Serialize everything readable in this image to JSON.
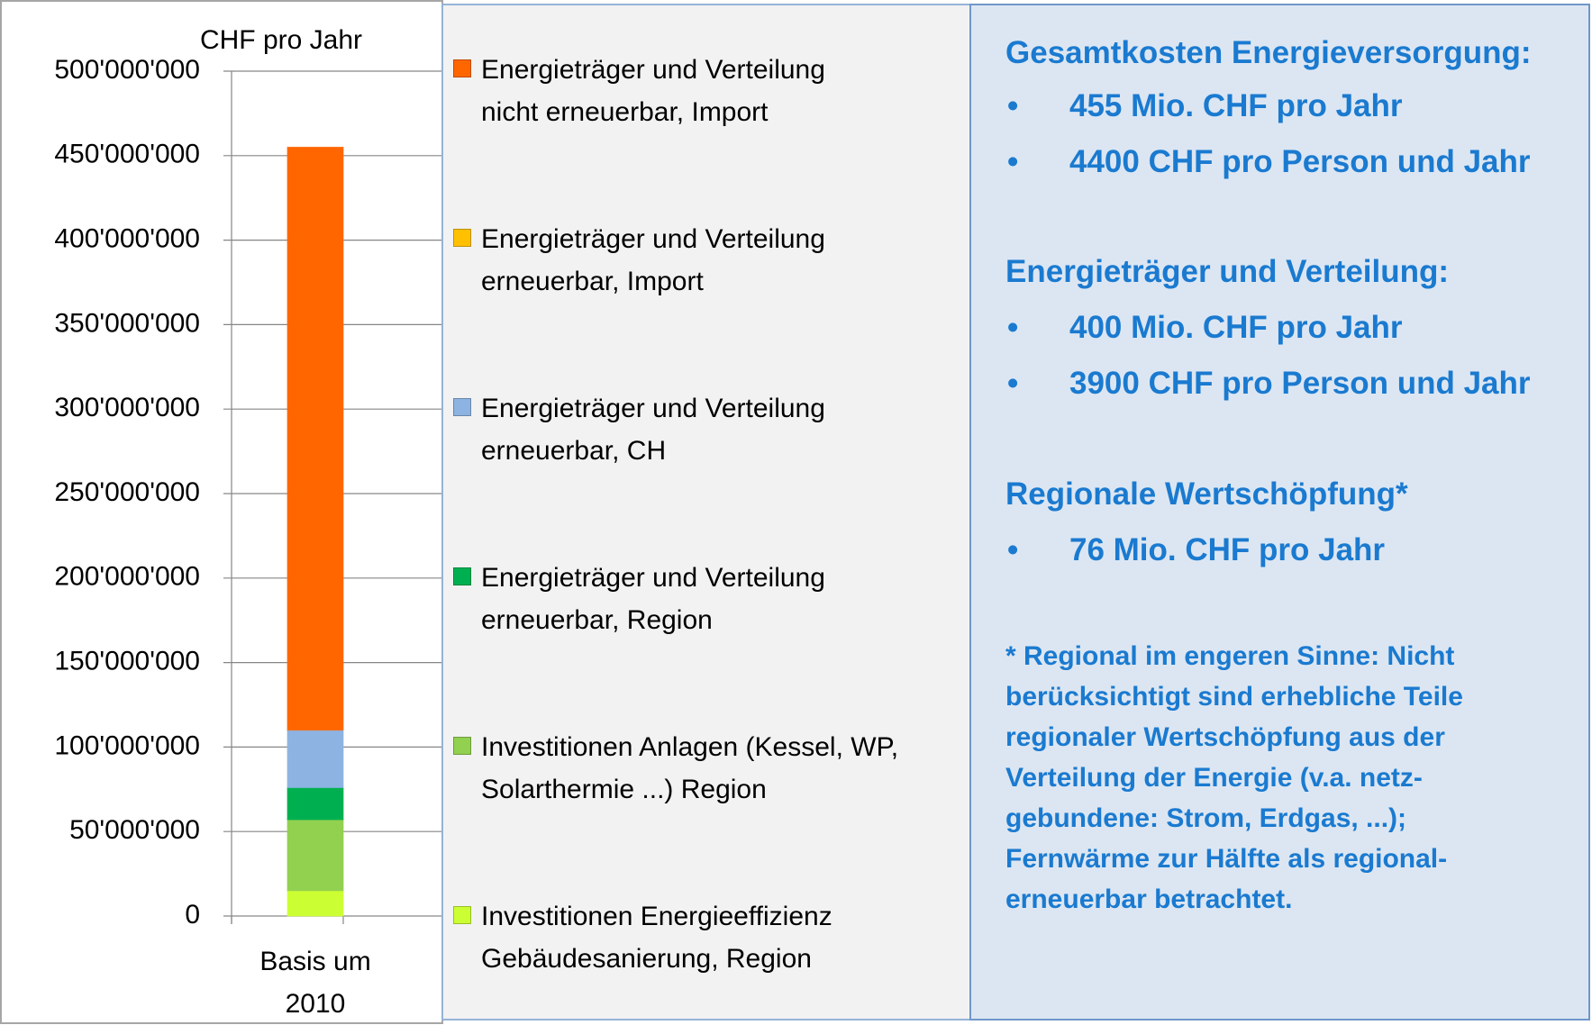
{
  "chart_data": {
    "type": "bar",
    "stacked": true,
    "ylabel": "CHF pro Jahr",
    "categories": [
      "Basis um\n2010"
    ],
    "series": [
      {
        "name": "Energieträger und Verteilung\nnicht erneuerbar, Import",
        "color": "#ff6600",
        "values": [
          345000000
        ]
      },
      {
        "name": "Energieträger und Verteilung\nerneuerbar, Import",
        "color": "#ffc000",
        "values": [
          0
        ]
      },
      {
        "name": "Energieträger und Verteilung\nerneuerbar, CH",
        "color": "#8db3e2",
        "values": [
          34000000
        ]
      },
      {
        "name": "Energieträger und Verteilung\nerneuerbar, Region",
        "color": "#00b050",
        "values": [
          19000000
        ]
      },
      {
        "name": "Investitionen Anlagen (Kessel, WP,\nSolarthermie ...) Region",
        "color": "#92d050",
        "values": [
          42000000
        ]
      },
      {
        "name": "Investitionen Energieeffizienz\nGebäudesanierung, Region",
        "color": "#ccff33",
        "values": [
          15000000
        ]
      }
    ],
    "ylim": [
      0,
      500000000
    ],
    "yticks": [
      0,
      {
        "value": 50000000,
        "label": "50'000'000"
      },
      {
        "value": 100000000,
        "label": "100'000'000"
      },
      {
        "value": 150000000,
        "label": "150'000'000"
      },
      {
        "value": 200000000,
        "label": "200'000'000"
      },
      {
        "value": 250000000,
        "label": "250'000'000"
      },
      {
        "value": 300000000,
        "label": "300'000'000"
      },
      {
        "value": 350000000,
        "label": "350'000'000"
      },
      {
        "value": 400000000,
        "label": "400'000'000"
      },
      {
        "value": 450000000,
        "label": "450'000'000"
      },
      {
        "value": 500000000,
        "label": "500'000'000"
      }
    ],
    "grid": true
  },
  "info": {
    "sections": [
      {
        "heading": "Gesamtkosten Energieversorgung:",
        "items": [
          "455 Mio. CHF pro Jahr",
          "4400 CHF pro Person und Jahr"
        ]
      },
      {
        "heading": "Energieträger und Verteilung:",
        "items": [
          "400 Mio. CHF pro Jahr",
          "3900 CHF pro Person und Jahr"
        ]
      },
      {
        "heading": "Regionale Wertschöpfung*",
        "items": [
          "76 Mio. CHF pro Jahr"
        ]
      }
    ],
    "footnote": "* Regional im engeren Sinne: Nicht\nberücksichtigt sind erhebliche Teile\nregionaler Wertschöpfung aus der\nVerteilung der Energie (v.a. netz-\ngebundene: Strom, Erdgas, ...);\nFernwärme zur Hälfte als regional-\nerneuerbar betrachtet."
  }
}
